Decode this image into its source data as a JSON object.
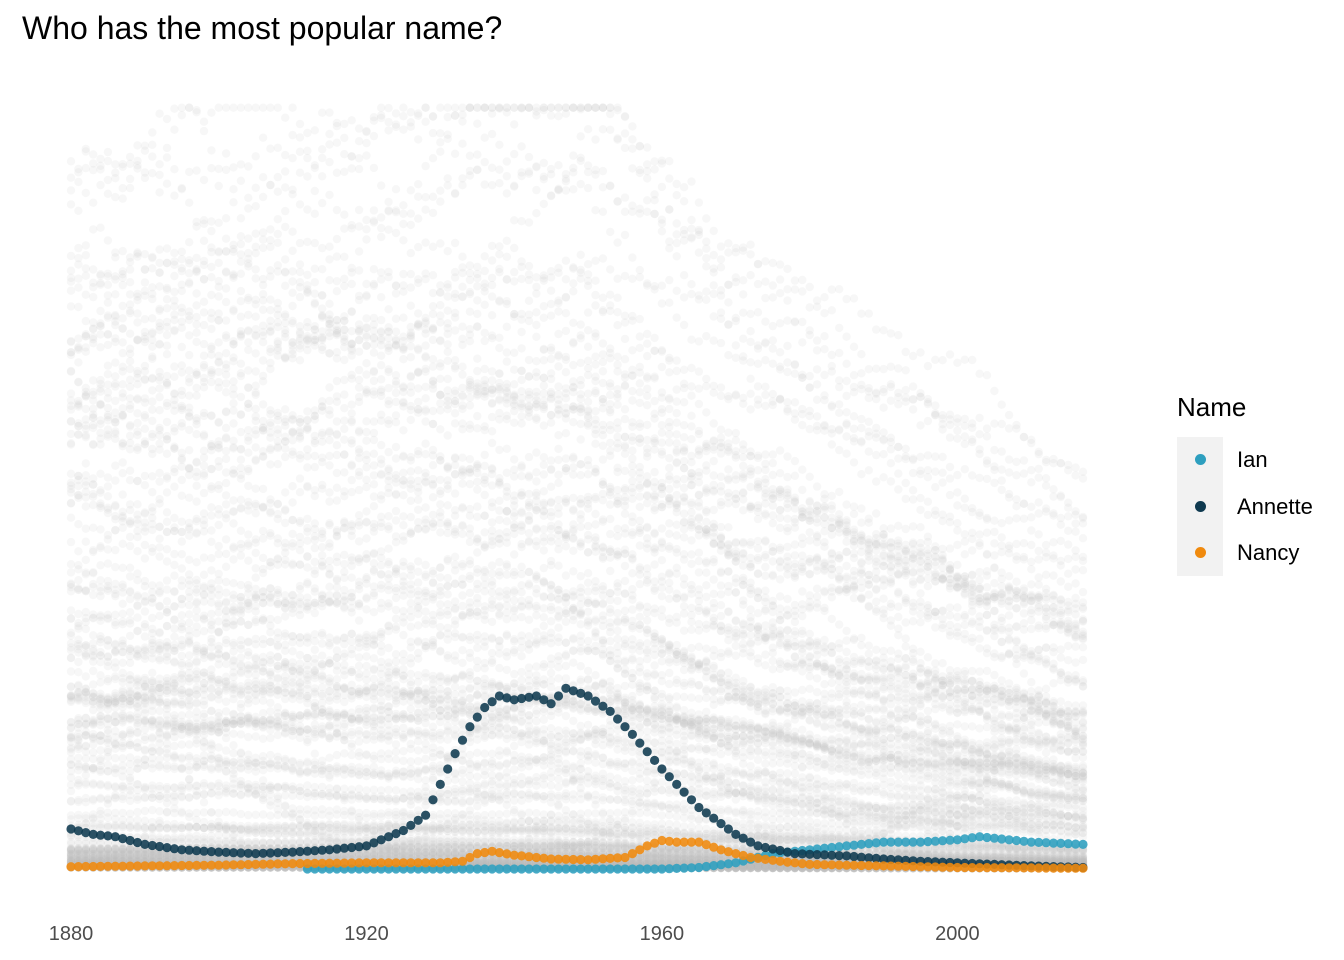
{
  "chart_data": {
    "type": "scatter",
    "title": "Who has the most popular name?",
    "xlabel": "",
    "ylabel": "",
    "xlim": [
      1880,
      2017
    ],
    "ylim": [
      0,
      1
    ],
    "x_ticks": [
      1880,
      1920,
      1960,
      2000
    ],
    "y_axis_labels_shown": false,
    "grid": false,
    "legend": {
      "title": "Name",
      "placement": "right"
    },
    "background_series_color": "#bebebe",
    "series": [
      {
        "name": "Ian",
        "color": "#2e9fbf",
        "start_year": 1912,
        "points": [
          [
            1880,
            0
          ],
          [
            1912,
            0
          ],
          [
            1960,
            0
          ],
          [
            1965,
            0.002
          ],
          [
            1970,
            0.008
          ],
          [
            1975,
            0.02
          ],
          [
            1980,
            0.025
          ],
          [
            1985,
            0.03
          ],
          [
            1990,
            0.035
          ],
          [
            1995,
            0.035
          ],
          [
            2000,
            0.038
          ],
          [
            2003,
            0.042
          ],
          [
            2005,
            0.04
          ],
          [
            2010,
            0.035
          ],
          [
            2017,
            0.032
          ]
        ]
      },
      {
        "name": "Annette",
        "color": "#0f3a50",
        "points": [
          [
            1880,
            0.052
          ],
          [
            1883,
            0.045
          ],
          [
            1886,
            0.042
          ],
          [
            1890,
            0.032
          ],
          [
            1895,
            0.025
          ],
          [
            1900,
            0.022
          ],
          [
            1905,
            0.02
          ],
          [
            1910,
            0.022
          ],
          [
            1915,
            0.025
          ],
          [
            1920,
            0.03
          ],
          [
            1925,
            0.05
          ],
          [
            1928,
            0.07
          ],
          [
            1930,
            0.11
          ],
          [
            1932,
            0.15
          ],
          [
            1934,
            0.185
          ],
          [
            1936,
            0.21
          ],
          [
            1938,
            0.225
          ],
          [
            1940,
            0.22
          ],
          [
            1943,
            0.225
          ],
          [
            1945,
            0.215
          ],
          [
            1947,
            0.235
          ],
          [
            1950,
            0.225
          ],
          [
            1953,
            0.205
          ],
          [
            1956,
            0.175
          ],
          [
            1960,
            0.13
          ],
          [
            1965,
            0.08
          ],
          [
            1970,
            0.045
          ],
          [
            1973,
            0.03
          ],
          [
            1978,
            0.02
          ],
          [
            1985,
            0.017
          ],
          [
            1990,
            0.013
          ],
          [
            1995,
            0.01
          ],
          [
            2000,
            0.008
          ],
          [
            2005,
            0.006
          ],
          [
            2010,
            0.004
          ],
          [
            2017,
            0.002
          ]
        ]
      },
      {
        "name": "Nancy",
        "color": "#f08a0e",
        "points": [
          [
            1880,
            0.003
          ],
          [
            1890,
            0.004
          ],
          [
            1900,
            0.005
          ],
          [
            1910,
            0.007
          ],
          [
            1920,
            0.008
          ],
          [
            1930,
            0.008
          ],
          [
            1933,
            0.01
          ],
          [
            1935,
            0.02
          ],
          [
            1937,
            0.023
          ],
          [
            1940,
            0.018
          ],
          [
            1945,
            0.013
          ],
          [
            1950,
            0.012
          ],
          [
            1955,
            0.015
          ],
          [
            1958,
            0.03
          ],
          [
            1960,
            0.037
          ],
          [
            1962,
            0.035
          ],
          [
            1965,
            0.035
          ],
          [
            1968,
            0.025
          ],
          [
            1972,
            0.015
          ],
          [
            1976,
            0.01
          ],
          [
            1980,
            0.006
          ],
          [
            1990,
            0.004
          ],
          [
            2000,
            0.002
          ],
          [
            2017,
            0.001
          ]
        ]
      }
    ]
  }
}
